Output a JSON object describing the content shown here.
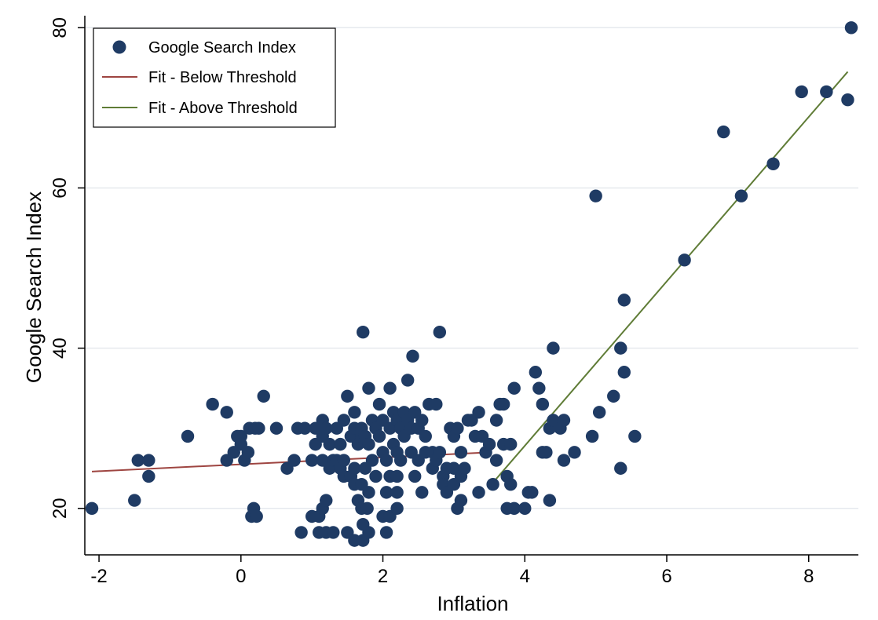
{
  "chart_data": {
    "type": "scatter",
    "xlabel": "Inflation",
    "ylabel": "Google Search Index",
    "xlim": [
      -2.2,
      8.7
    ],
    "ylim": [
      14.2,
      81.5
    ],
    "xticks": [
      -2,
      0,
      2,
      4,
      6,
      8
    ],
    "yticks": [
      20,
      40,
      60,
      80
    ],
    "grid": "horizontal",
    "legend": {
      "placement": "top-left",
      "entries": [
        "Google Search Index",
        "Fit - Below Threshold",
        "Fit - Above Threshold"
      ]
    },
    "colors": {
      "points": "#1f3b64",
      "fit_below": "#9e4541",
      "fit_above": "#5f7c36",
      "grid": "#e6e9ee"
    },
    "series": [
      {
        "name": "Google Search Index",
        "kind": "scatter",
        "points": [
          [
            -2.1,
            20
          ],
          [
            -1.5,
            21
          ],
          [
            -1.45,
            26
          ],
          [
            -1.3,
            26
          ],
          [
            -1.3,
            24
          ],
          [
            -0.75,
            29
          ],
          [
            -0.4,
            33
          ],
          [
            -0.2,
            32
          ],
          [
            -0.2,
            26
          ],
          [
            -0.1,
            27
          ],
          [
            -0.05,
            29
          ],
          [
            0.0,
            29
          ],
          [
            0.0,
            28
          ],
          [
            0.05,
            26
          ],
          [
            0.1,
            27
          ],
          [
            0.12,
            30
          ],
          [
            0.15,
            19
          ],
          [
            0.18,
            20
          ],
          [
            0.2,
            30
          ],
          [
            0.22,
            19
          ],
          [
            0.25,
            30
          ],
          [
            0.32,
            34
          ],
          [
            0.5,
            30
          ],
          [
            0.65,
            25
          ],
          [
            0.75,
            26
          ],
          [
            0.8,
            30
          ],
          [
            0.85,
            17
          ],
          [
            0.9,
            30
          ],
          [
            1.0,
            26
          ],
          [
            1.0,
            19
          ],
          [
            1.05,
            28
          ],
          [
            1.05,
            30
          ],
          [
            1.1,
            19
          ],
          [
            1.1,
            17
          ],
          [
            1.15,
            26
          ],
          [
            1.15,
            20
          ],
          [
            1.15,
            29
          ],
          [
            1.15,
            31
          ],
          [
            1.2,
            17
          ],
          [
            1.2,
            30
          ],
          [
            1.2,
            21
          ],
          [
            1.25,
            28
          ],
          [
            1.25,
            25
          ],
          [
            1.3,
            26
          ],
          [
            1.3,
            17
          ],
          [
            1.35,
            26
          ],
          [
            1.35,
            30
          ],
          [
            1.4,
            25
          ],
          [
            1.4,
            28
          ],
          [
            1.45,
            31
          ],
          [
            1.45,
            24
          ],
          [
            1.45,
            26
          ],
          [
            1.5,
            34
          ],
          [
            1.5,
            17
          ],
          [
            1.55,
            24
          ],
          [
            1.55,
            29
          ],
          [
            1.6,
            30
          ],
          [
            1.6,
            23
          ],
          [
            1.6,
            16
          ],
          [
            1.6,
            25
          ],
          [
            1.6,
            32
          ],
          [
            1.65,
            28
          ],
          [
            1.65,
            21
          ],
          [
            1.7,
            29
          ],
          [
            1.7,
            20
          ],
          [
            1.7,
            30
          ],
          [
            1.7,
            23
          ],
          [
            1.72,
            42
          ],
          [
            1.72,
            18
          ],
          [
            1.72,
            16
          ],
          [
            1.75,
            25
          ],
          [
            1.75,
            29
          ],
          [
            1.78,
            20
          ],
          [
            1.8,
            35
          ],
          [
            1.8,
            22
          ],
          [
            1.8,
            28
          ],
          [
            1.8,
            17
          ],
          [
            1.85,
            31
          ],
          [
            1.85,
            26
          ],
          [
            1.9,
            24
          ],
          [
            1.9,
            30
          ],
          [
            1.95,
            33
          ],
          [
            1.95,
            29
          ],
          [
            2.0,
            31
          ],
          [
            2.0,
            19
          ],
          [
            2.0,
            27
          ],
          [
            2.05,
            26
          ],
          [
            2.05,
            17
          ],
          [
            2.05,
            22
          ],
          [
            2.1,
            35
          ],
          [
            2.1,
            24
          ],
          [
            2.1,
            30
          ],
          [
            2.1,
            19
          ],
          [
            2.15,
            32
          ],
          [
            2.15,
            28
          ],
          [
            2.2,
            31
          ],
          [
            2.2,
            27
          ],
          [
            2.2,
            24
          ],
          [
            2.2,
            22
          ],
          [
            2.2,
            20
          ],
          [
            2.25,
            30
          ],
          [
            2.25,
            26
          ],
          [
            2.3,
            32
          ],
          [
            2.3,
            29
          ],
          [
            2.35,
            36
          ],
          [
            2.35,
            31
          ],
          [
            2.4,
            30
          ],
          [
            2.4,
            27
          ],
          [
            2.42,
            39
          ],
          [
            2.45,
            32
          ],
          [
            2.45,
            24
          ],
          [
            2.5,
            30
          ],
          [
            2.5,
            26
          ],
          [
            2.55,
            31
          ],
          [
            2.55,
            22
          ],
          [
            2.6,
            27
          ],
          [
            2.6,
            29
          ],
          [
            2.65,
            33
          ],
          [
            2.7,
            27
          ],
          [
            2.7,
            25
          ],
          [
            2.75,
            33
          ],
          [
            2.75,
            26
          ],
          [
            2.8,
            42
          ],
          [
            2.8,
            27
          ],
          [
            2.85,
            24
          ],
          [
            2.85,
            23
          ],
          [
            2.9,
            25
          ],
          [
            2.9,
            22
          ],
          [
            2.95,
            30
          ],
          [
            3.0,
            29
          ],
          [
            3.0,
            25
          ],
          [
            3.0,
            23
          ],
          [
            3.05,
            30
          ],
          [
            3.05,
            20
          ],
          [
            3.1,
            27
          ],
          [
            3.1,
            21
          ],
          [
            3.1,
            24
          ],
          [
            3.15,
            25
          ],
          [
            3.2,
            31
          ],
          [
            3.25,
            31
          ],
          [
            3.3,
            29
          ],
          [
            3.35,
            32
          ],
          [
            3.35,
            22
          ],
          [
            3.4,
            29
          ],
          [
            3.45,
            27
          ],
          [
            3.5,
            28
          ],
          [
            3.55,
            23
          ],
          [
            3.6,
            26
          ],
          [
            3.6,
            31
          ],
          [
            3.65,
            33
          ],
          [
            3.7,
            33
          ],
          [
            3.7,
            28
          ],
          [
            3.75,
            24
          ],
          [
            3.75,
            20
          ],
          [
            3.8,
            28
          ],
          [
            3.8,
            23
          ],
          [
            3.85,
            35
          ],
          [
            3.85,
            20
          ],
          [
            4.0,
            20
          ],
          [
            4.05,
            22
          ],
          [
            4.1,
            22
          ],
          [
            4.15,
            37
          ],
          [
            4.2,
            35
          ],
          [
            4.25,
            33
          ],
          [
            4.25,
            27
          ],
          [
            4.3,
            27
          ],
          [
            4.35,
            21
          ],
          [
            4.35,
            30
          ],
          [
            4.4,
            31
          ],
          [
            4.4,
            40
          ],
          [
            4.5,
            30
          ],
          [
            4.55,
            26
          ],
          [
            4.55,
            31
          ],
          [
            4.7,
            27
          ],
          [
            4.95,
            29
          ],
          [
            5.0,
            59
          ],
          [
            5.05,
            32
          ],
          [
            5.25,
            34
          ],
          [
            5.35,
            25
          ],
          [
            5.35,
            40
          ],
          [
            5.4,
            46
          ],
          [
            5.4,
            37
          ],
          [
            5.55,
            29
          ],
          [
            6.25,
            51
          ],
          [
            6.8,
            67
          ],
          [
            7.05,
            59
          ],
          [
            7.5,
            63
          ],
          [
            7.9,
            72
          ],
          [
            8.25,
            72
          ],
          [
            8.55,
            71
          ],
          [
            8.6,
            80
          ]
        ]
      },
      {
        "name": "Fit - Below Threshold",
        "kind": "line",
        "points": [
          [
            -2.1,
            24.6
          ],
          [
            3.5,
            27.0
          ]
        ]
      },
      {
        "name": "Fit - Above Threshold",
        "kind": "line",
        "points": [
          [
            3.55,
            23.2
          ],
          [
            8.55,
            74.5
          ]
        ]
      }
    ]
  }
}
